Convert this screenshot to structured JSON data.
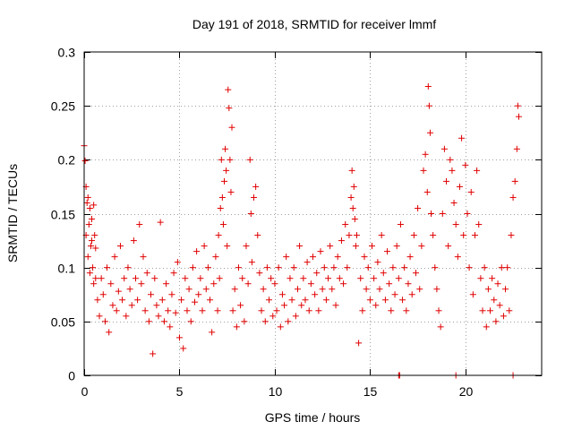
{
  "chart_data": {
    "type": "scatter",
    "title": "Day 191 of 2018, SRMTID for receiver lmmf",
    "xlabel": "GPS time / hours",
    "ylabel": "SRMTID / TECUs",
    "xlim": [
      0,
      24
    ],
    "ylim": [
      0,
      0.3
    ],
    "xticks": [
      0,
      5,
      10,
      15,
      20
    ],
    "xtick_labels": [
      "0",
      "5",
      "10",
      "15",
      "20"
    ],
    "yticks": [
      0,
      0.05,
      0.1,
      0.15,
      0.2,
      0.25,
      0.3
    ],
    "ytick_labels": [
      "0",
      "0.05",
      "0.1",
      "0.15",
      "0.2",
      "0.25",
      "0.3"
    ],
    "grid": true,
    "marker": "plus",
    "color": "#e00000",
    "series": [
      {
        "name": "SRMTID",
        "points": [
          [
            0.0,
            0.213
          ],
          [
            0.05,
            0.199
          ],
          [
            0.1,
            0.175
          ],
          [
            0.15,
            0.16
          ],
          [
            0.2,
            0.165
          ],
          [
            0.25,
            0.14
          ],
          [
            0.3,
            0.155
          ],
          [
            0.35,
            0.12
          ],
          [
            0.4,
            0.145
          ],
          [
            0.45,
            0.1
          ],
          [
            0.5,
            0.158
          ],
          [
            0.55,
            0.13
          ],
          [
            0.6,
            0.09
          ],
          [
            0.1,
            0.13
          ],
          [
            0.2,
            0.11
          ],
          [
            0.3,
            0.095
          ],
          [
            0.4,
            0.125
          ],
          [
            0.5,
            0.085
          ],
          [
            0.6,
            0.118
          ],
          [
            0.7,
            0.07
          ],
          [
            0.8,
            0.055
          ],
          [
            0.9,
            0.09
          ],
          [
            1.0,
            0.075
          ],
          [
            1.1,
            0.05
          ],
          [
            1.2,
            0.1
          ],
          [
            1.3,
            0.04
          ],
          [
            1.4,
            0.085
          ],
          [
            1.5,
            0.065
          ],
          [
            1.6,
            0.11
          ],
          [
            1.7,
            0.06
          ],
          [
            1.8,
            0.078
          ],
          [
            1.9,
            0.12
          ],
          [
            2.0,
            0.07
          ],
          [
            2.1,
            0.09
          ],
          [
            2.2,
            0.055
          ],
          [
            2.3,
            0.1
          ],
          [
            2.4,
            0.08
          ],
          [
            2.5,
            0.065
          ],
          [
            2.6,
            0.125
          ],
          [
            2.7,
            0.09
          ],
          [
            2.8,
            0.07
          ],
          [
            2.9,
            0.14
          ],
          [
            3.0,
            0.085
          ],
          [
            3.1,
            0.11
          ],
          [
            3.2,
            0.06
          ],
          [
            3.3,
            0.095
          ],
          [
            3.4,
            0.05
          ],
          [
            3.5,
            0.075
          ],
          [
            3.6,
            0.02
          ],
          [
            3.7,
            0.09
          ],
          [
            3.8,
            0.065
          ],
          [
            3.9,
            0.055
          ],
          [
            4.0,
            0.142
          ],
          [
            4.1,
            0.07
          ],
          [
            4.2,
            0.05
          ],
          [
            4.3,
            0.085
          ],
          [
            4.4,
            0.06
          ],
          [
            4.5,
            0.045
          ],
          [
            4.6,
            0.075
          ],
          [
            4.7,
            0.095
          ],
          [
            4.8,
            0.058
          ],
          [
            4.9,
            0.105
          ],
          [
            5.0,
            0.035
          ],
          [
            5.1,
            0.07
          ],
          [
            5.2,
            0.025
          ],
          [
            5.3,
            0.09
          ],
          [
            5.4,
            0.06
          ],
          [
            5.5,
            0.08
          ],
          [
            5.6,
            0.05
          ],
          [
            5.7,
            0.1
          ],
          [
            5.8,
            0.068
          ],
          [
            5.9,
            0.115
          ],
          [
            6.0,
            0.075
          ],
          [
            6.1,
            0.09
          ],
          [
            6.2,
            0.06
          ],
          [
            6.3,
            0.12
          ],
          [
            6.4,
            0.08
          ],
          [
            6.5,
            0.1
          ],
          [
            6.6,
            0.07
          ],
          [
            6.7,
            0.04
          ],
          [
            6.8,
            0.085
          ],
          [
            6.9,
            0.11
          ],
          [
            7.0,
            0.06
          ],
          [
            7.05,
            0.13
          ],
          [
            7.1,
            0.09
          ],
          [
            7.15,
            0.155
          ],
          [
            7.2,
            0.2
          ],
          [
            7.25,
            0.165
          ],
          [
            7.3,
            0.14
          ],
          [
            7.35,
            0.18
          ],
          [
            7.4,
            0.21
          ],
          [
            7.45,
            0.19
          ],
          [
            7.5,
            0.12
          ],
          [
            7.55,
            0.265
          ],
          [
            7.6,
            0.248
          ],
          [
            7.65,
            0.2
          ],
          [
            7.7,
            0.17
          ],
          [
            7.75,
            0.23
          ],
          [
            7.8,
            0.06
          ],
          [
            7.9,
            0.08
          ],
          [
            8.0,
            0.045
          ],
          [
            8.1,
            0.1
          ],
          [
            8.2,
            0.065
          ],
          [
            8.3,
            0.09
          ],
          [
            8.4,
            0.05
          ],
          [
            8.5,
            0.12
          ],
          [
            8.6,
            0.085
          ],
          [
            8.7,
            0.2
          ],
          [
            8.75,
            0.15
          ],
          [
            8.8,
            0.105
          ],
          [
            8.9,
            0.165
          ],
          [
            9.0,
            0.175
          ],
          [
            9.1,
            0.13
          ],
          [
            9.2,
            0.095
          ],
          [
            9.3,
            0.06
          ],
          [
            9.4,
            0.08
          ],
          [
            9.5,
            0.05
          ],
          [
            9.6,
            0.1
          ],
          [
            9.7,
            0.07
          ],
          [
            9.8,
            0.09
          ],
          [
            9.9,
            0.055
          ],
          [
            10.0,
            0.085
          ],
          [
            10.1,
            0.06
          ],
          [
            10.2,
            0.1
          ],
          [
            10.3,
            0.045
          ],
          [
            10.4,
            0.075
          ],
          [
            10.5,
            0.065
          ],
          [
            10.6,
            0.11
          ],
          [
            10.7,
            0.05
          ],
          [
            10.8,
            0.09
          ],
          [
            10.9,
            0.07
          ],
          [
            11.0,
            0.1
          ],
          [
            11.1,
            0.055
          ],
          [
            11.2,
            0.08
          ],
          [
            11.3,
            0.12
          ],
          [
            11.4,
            0.065
          ],
          [
            11.5,
            0.09
          ],
          [
            11.6,
            0.07
          ],
          [
            11.7,
            0.105
          ],
          [
            11.8,
            0.06
          ],
          [
            11.9,
            0.085
          ],
          [
            12.0,
            0.11
          ],
          [
            12.1,
            0.075
          ],
          [
            12.2,
            0.095
          ],
          [
            12.3,
            0.06
          ],
          [
            12.4,
            0.115
          ],
          [
            12.5,
            0.08
          ],
          [
            12.6,
            0.1
          ],
          [
            12.7,
            0.07
          ],
          [
            12.8,
            0.09
          ],
          [
            12.9,
            0.12
          ],
          [
            13.0,
            0.08
          ],
          [
            13.1,
            0.1
          ],
          [
            13.2,
            0.065
          ],
          [
            13.3,
            0.11
          ],
          [
            13.4,
            0.09
          ],
          [
            13.5,
            0.125
          ],
          [
            13.6,
            0.085
          ],
          [
            13.7,
            0.14
          ],
          [
            13.8,
            0.1
          ],
          [
            13.9,
            0.13
          ],
          [
            14.0,
            0.165
          ],
          [
            14.05,
            0.19
          ],
          [
            14.1,
            0.155
          ],
          [
            14.15,
            0.175
          ],
          [
            14.2,
            0.145
          ],
          [
            14.25,
            0.12
          ],
          [
            14.3,
            0.13
          ],
          [
            14.4,
            0.03
          ],
          [
            14.5,
            0.09
          ],
          [
            14.6,
            0.06
          ],
          [
            14.7,
            0.11
          ],
          [
            14.8,
            0.08
          ],
          [
            14.9,
            0.1
          ],
          [
            15.0,
            0.07
          ],
          [
            15.1,
            0.12
          ],
          [
            15.2,
            0.09
          ],
          [
            15.3,
            0.065
          ],
          [
            15.4,
            0.105
          ],
          [
            15.5,
            0.08
          ],
          [
            15.6,
            0.13
          ],
          [
            15.7,
            0.095
          ],
          [
            15.8,
            0.07
          ],
          [
            15.9,
            0.115
          ],
          [
            16.0,
            0.085
          ],
          [
            16.1,
            0.06
          ],
          [
            16.2,
            0.1
          ],
          [
            16.3,
            0.075
          ],
          [
            16.4,
            0.12
          ],
          [
            16.5,
            0.09
          ],
          [
            16.6,
            0.14
          ],
          [
            16.7,
            0.07
          ],
          [
            16.8,
            0.1
          ],
          [
            16.9,
            0.06
          ],
          [
            17.0,
            0.085
          ],
          [
            17.1,
            0.11
          ],
          [
            17.2,
            0.075
          ],
          [
            17.3,
            0.13
          ],
          [
            17.4,
            0.095
          ],
          [
            17.5,
            0.155
          ],
          [
            17.6,
            0.08
          ],
          [
            17.7,
            0.12
          ],
          [
            17.8,
            0.19
          ],
          [
            17.9,
            0.205
          ],
          [
            18.0,
            0.17
          ],
          [
            18.05,
            0.268
          ],
          [
            18.1,
            0.25
          ],
          [
            18.15,
            0.225
          ],
          [
            18.2,
            0.15
          ],
          [
            18.3,
            0.13
          ],
          [
            18.4,
            0.1
          ],
          [
            18.5,
            0.08
          ],
          [
            18.6,
            0.06
          ],
          [
            18.7,
            0.045
          ],
          [
            18.8,
            0.15
          ],
          [
            18.9,
            0.21
          ],
          [
            19.0,
            0.18
          ],
          [
            19.1,
            0.12
          ],
          [
            19.2,
            0.2
          ],
          [
            19.3,
            0.19
          ],
          [
            19.4,
            0.16
          ],
          [
            19.5,
            0.14
          ],
          [
            19.6,
            0.11
          ],
          [
            19.7,
            0.175
          ],
          [
            19.8,
            0.22
          ],
          [
            19.9,
            0.13
          ],
          [
            20.0,
            0.195
          ],
          [
            20.1,
            0.15
          ],
          [
            20.2,
            0.1
          ],
          [
            20.3,
            0.17
          ],
          [
            20.4,
            0.075
          ],
          [
            20.5,
            0.13
          ],
          [
            20.6,
            0.19
          ],
          [
            20.7,
            0.14
          ],
          [
            20.8,
            0.09
          ],
          [
            20.9,
            0.06
          ],
          [
            21.0,
            0.1
          ],
          [
            21.1,
            0.045
          ],
          [
            21.2,
            0.08
          ],
          [
            21.3,
            0.06
          ],
          [
            21.4,
            0.09
          ],
          [
            21.5,
            0.07
          ],
          [
            21.6,
            0.05
          ],
          [
            21.7,
            0.085
          ],
          [
            21.8,
            0.065
          ],
          [
            21.9,
            0.1
          ],
          [
            22.0,
            0.055
          ],
          [
            22.1,
            0.08
          ],
          [
            22.2,
            0.1
          ],
          [
            22.3,
            0.06
          ],
          [
            22.4,
            0.13
          ],
          [
            22.5,
            0.165
          ],
          [
            22.6,
            0.18
          ],
          [
            22.7,
            0.21
          ],
          [
            22.75,
            0.25
          ],
          [
            22.8,
            0.24
          ]
        ],
        "zero_points": [
          16.5,
          16.55,
          19.5,
          22.5
        ]
      }
    ]
  }
}
